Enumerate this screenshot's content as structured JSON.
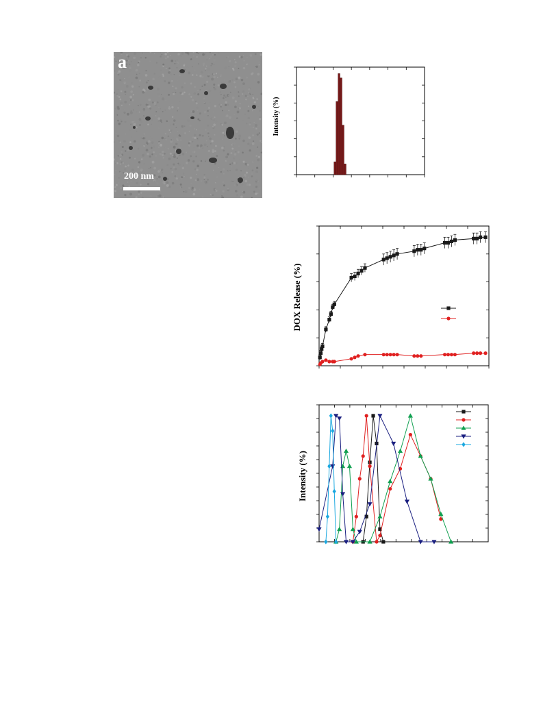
{
  "tem": {
    "panel_letter": "a",
    "scale_label": "200 nm"
  },
  "chart_data": [
    {
      "id": "dls-histogram",
      "type": "bar",
      "ylabel": "Intensity (%)",
      "xlabel": "",
      "xlim": [
        0,
        100
      ],
      "ylim": [
        0,
        100
      ],
      "x": [
        30,
        31.6,
        33.2,
        34.8,
        36.4,
        38
      ],
      "values": [
        12,
        68,
        94,
        90,
        46,
        10
      ],
      "bar_color": "#7a1b1b",
      "grid": false
    },
    {
      "id": "dox-release",
      "type": "line",
      "ylabel": "DOX Release (%)",
      "xlabel": "",
      "xlim": [
        0,
        100
      ],
      "ylim": [
        0,
        100
      ],
      "legend_position": "right",
      "series": [
        {
          "color": "#1a1a1a",
          "marker": "square",
          "error_bars": true,
          "x": [
            0.5,
            1,
            1.5,
            2,
            4,
            6,
            7,
            8,
            9,
            19,
            21,
            23,
            25,
            27,
            38,
            40,
            42,
            44,
            46,
            56,
            58,
            60,
            62,
            74,
            76,
            78,
            80,
            91,
            93,
            95,
            98
          ],
          "y": [
            6,
            9,
            12,
            14,
            26,
            33,
            37,
            42,
            44,
            63,
            64,
            66,
            68,
            70,
            76,
            77,
            78,
            79,
            80,
            82,
            83,
            83,
            84,
            88,
            88,
            89,
            90,
            91,
            91,
            92,
            92
          ],
          "err": [
            2,
            2,
            2,
            2,
            2,
            2,
            2,
            2,
            2,
            3,
            3,
            3,
            3,
            3,
            4,
            4,
            4,
            4,
            4,
            4,
            4,
            4,
            4,
            4,
            4,
            4,
            4,
            4,
            4,
            4,
            4
          ]
        },
        {
          "color": "#e02020",
          "marker": "circle",
          "error_bars": false,
          "x": [
            0.5,
            1,
            2,
            4,
            6,
            8,
            9,
            19,
            21,
            23,
            27,
            38,
            40,
            42,
            44,
            46,
            56,
            58,
            60,
            74,
            76,
            78,
            80,
            91,
            93,
            95,
            98
          ],
          "y": [
            1,
            2,
            3,
            4,
            3,
            3,
            3,
            5,
            6,
            7,
            8,
            8,
            8,
            8,
            8,
            8,
            7,
            7,
            7,
            8,
            8,
            8,
            8,
            9,
            9,
            9,
            9
          ]
        }
      ]
    },
    {
      "id": "size-distribution",
      "type": "line",
      "ylabel": "Intensity (%)",
      "xlabel": "",
      "xlim": [
        0,
        100
      ],
      "ylim": [
        0,
        100
      ],
      "legend_position": "top-right",
      "series": [
        {
          "color": "#1a1a1a",
          "marker": "square",
          "x": [
            26,
            28,
            30,
            32,
            34,
            36,
            38
          ],
          "y": [
            0,
            20,
            63,
            100,
            78,
            10,
            0
          ]
        },
        {
          "color": "#e02020",
          "marker": "circle",
          "x": [
            20,
            22,
            24,
            26,
            28,
            30,
            34,
            36,
            42,
            48,
            54,
            60,
            66,
            72
          ],
          "y": [
            0,
            20,
            50,
            68,
            100,
            60,
            0,
            5,
            42,
            58,
            85,
            68,
            50,
            18
          ]
        },
        {
          "color": "#10a050",
          "marker": "triangle-up",
          "x": [
            10,
            12,
            14,
            16,
            18,
            20,
            22,
            30,
            36,
            42,
            48,
            54,
            60,
            66,
            72,
            78
          ],
          "y": [
            0,
            10,
            60,
            72,
            60,
            10,
            0,
            0,
            20,
            48,
            72,
            100,
            68,
            50,
            22,
            0
          ]
        },
        {
          "color": "#1a1f80",
          "marker": "triangle-down",
          "x": [
            0,
            8,
            10,
            12,
            14,
            16,
            20,
            24,
            30,
            36,
            44,
            52,
            60,
            68
          ],
          "y": [
            10,
            60,
            100,
            98,
            38,
            0,
            0,
            8,
            30,
            100,
            78,
            32,
            0,
            0
          ]
        },
        {
          "color": "#1aa8e0",
          "marker": "diamond",
          "x": [
            4,
            5,
            6,
            7,
            8,
            9,
            10
          ],
          "y": [
            0,
            20,
            60,
            100,
            88,
            40,
            0
          ]
        }
      ]
    }
  ]
}
